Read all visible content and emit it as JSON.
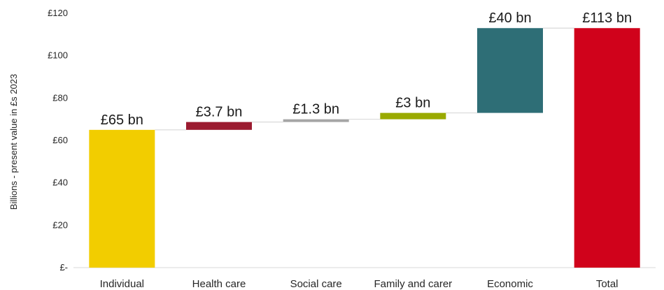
{
  "chart_data": {
    "type": "waterfall",
    "ylabel": "Billions - present value in £s 2023",
    "ylim": [
      0,
      120
    ],
    "y_ticks": [
      0,
      20,
      40,
      60,
      80,
      100,
      120
    ],
    "y_tick_labels": [
      "£-",
      "£20",
      "£40",
      "£60",
      "£80",
      "£100",
      "£120"
    ],
    "grid": false,
    "legend": "none",
    "bars": [
      {
        "category": "Individual",
        "start": 0,
        "end": 65,
        "label": "£65 bn",
        "color": "#f2cd00"
      },
      {
        "category": "Health care",
        "start": 65,
        "end": 68.7,
        "label": "£3.7 bn",
        "color": "#9b1b30"
      },
      {
        "category": "Social care",
        "start": 68.7,
        "end": 70,
        "label": "£1.3 bn",
        "color": "#a6a6a6"
      },
      {
        "category": "Family and carer",
        "start": 70,
        "end": 73,
        "label": "£3 bn",
        "color": "#9aaa00"
      },
      {
        "category": "Economic",
        "start": 73,
        "end": 113,
        "label": "£40 bn",
        "color": "#2e6e76"
      },
      {
        "category": "Total",
        "start": 0,
        "end": 113,
        "label": "£113 bn",
        "color": "#d0021b"
      }
    ]
  }
}
